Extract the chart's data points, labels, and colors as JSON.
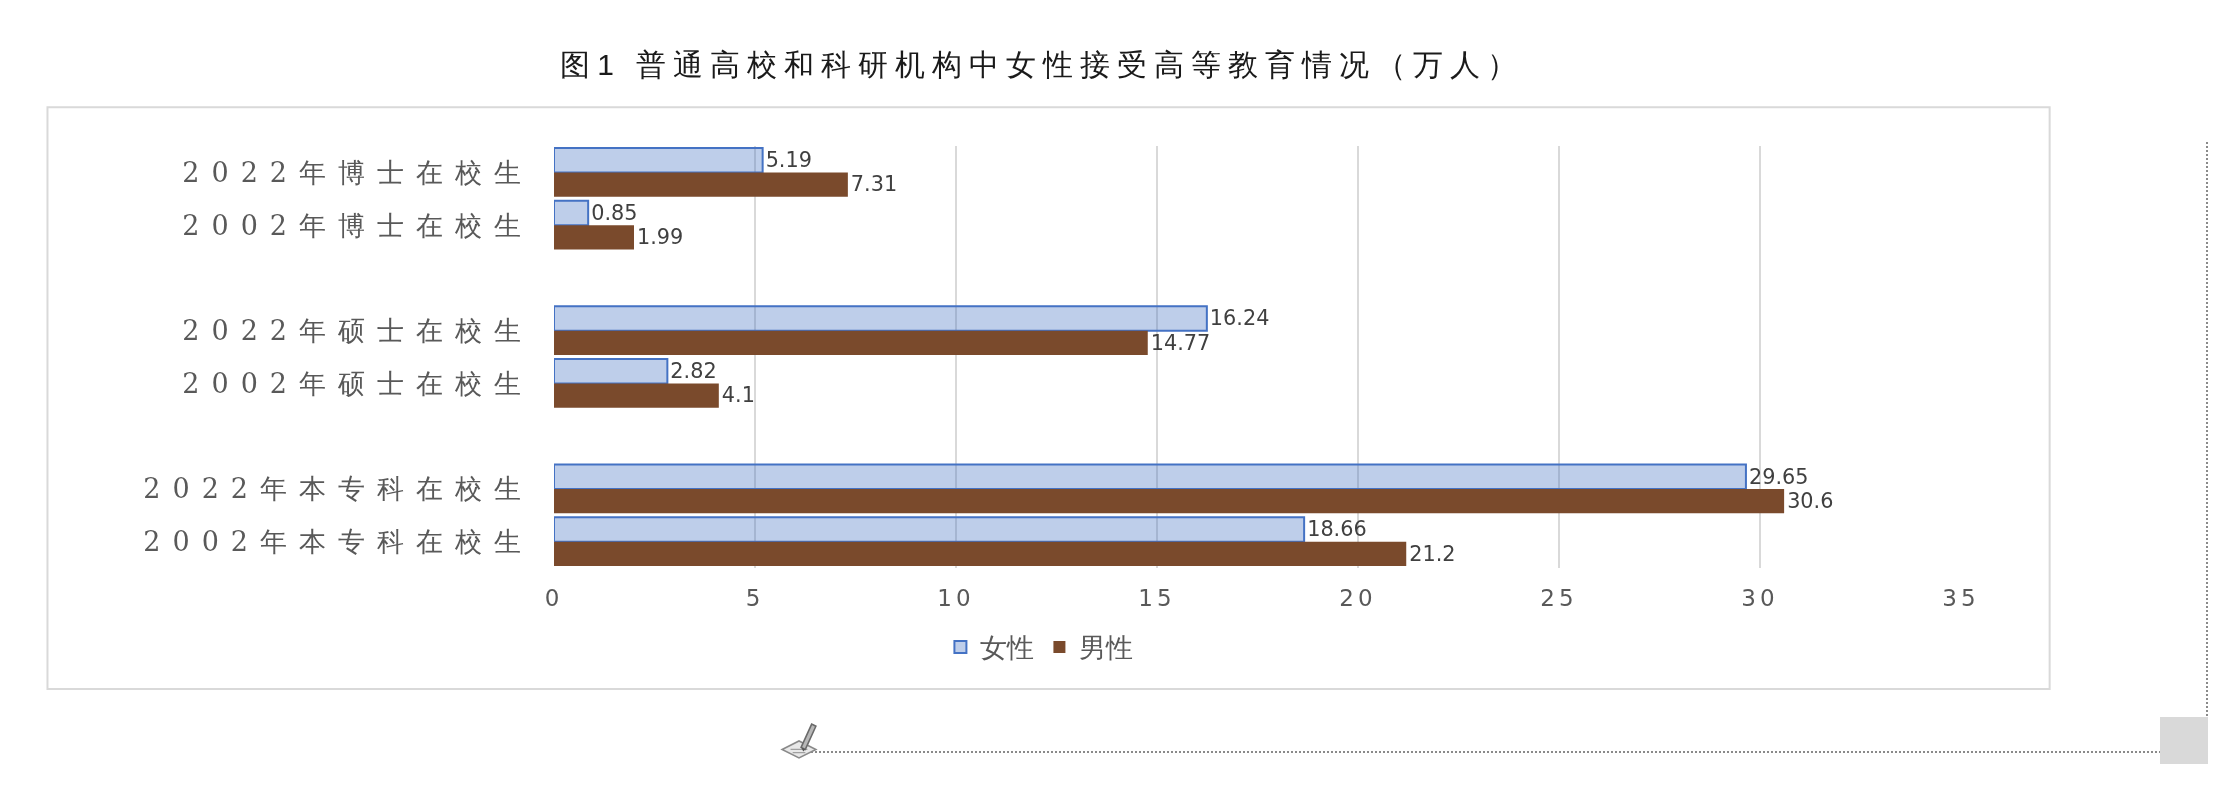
{
  "chart_data": {
    "type": "bar",
    "orientation": "horizontal",
    "title": "图1 普通高校和科研机构中女性接受高等教育情况（万人）",
    "categories": [
      "2022年博士在校生",
      "2002年博士在校生",
      null,
      "2022年硕士在校生",
      "2002年硕士在校生",
      null,
      "2022年本专科在校生",
      "2002年本专科在校生"
    ],
    "series": [
      {
        "name": "女性",
        "color": "#4472c4",
        "values": [
          5.19,
          0.85,
          null,
          16.24,
          2.82,
          null,
          29.65,
          18.66
        ]
      },
      {
        "name": "男性",
        "color": "#7a4a2c",
        "values": [
          7.31,
          1.99,
          null,
          14.77,
          4.1,
          null,
          30.6,
          21.2
        ]
      }
    ],
    "xlim": [
      0,
      35
    ],
    "xticks": [
      0,
      5,
      10,
      15,
      20,
      25,
      30,
      35
    ],
    "grid": "x",
    "legend": "bottom",
    "data_labels": true
  }
}
